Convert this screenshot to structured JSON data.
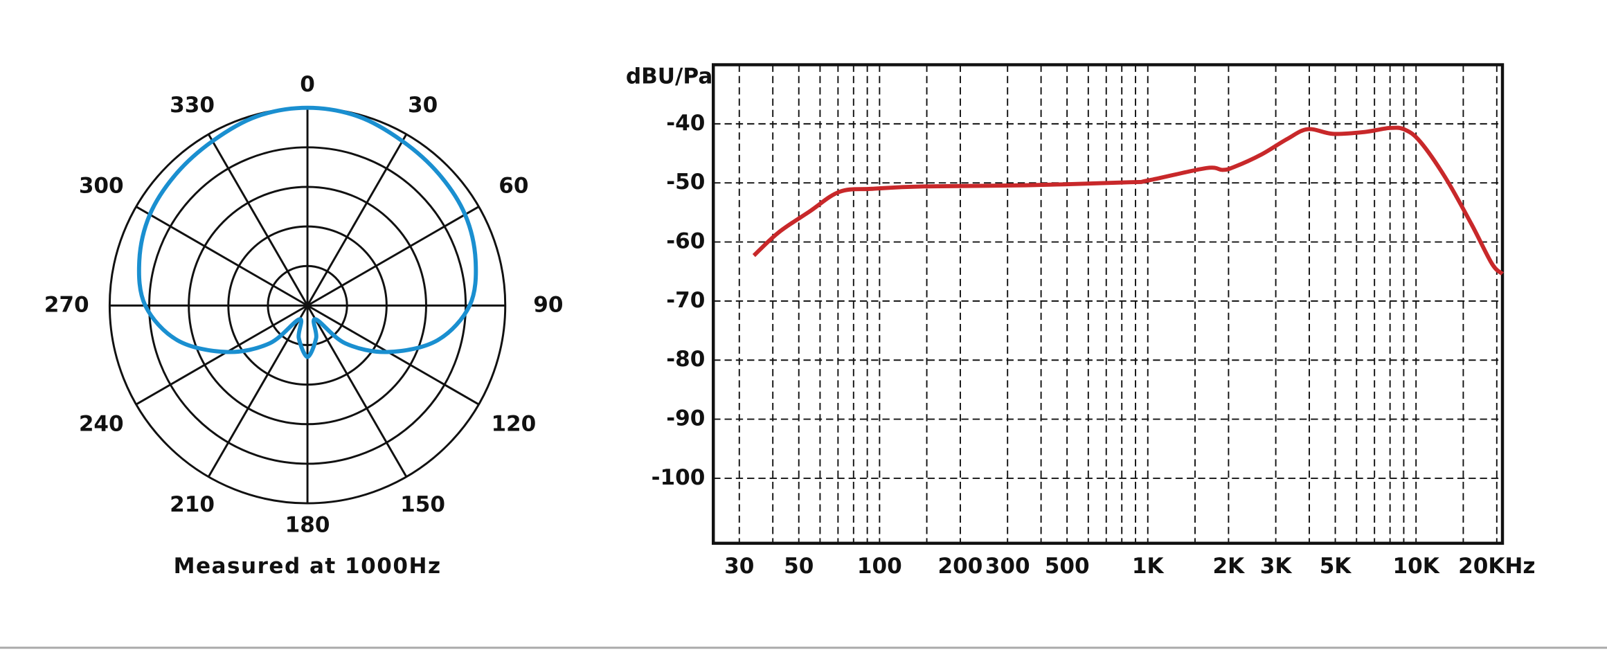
{
  "chart_data": [
    {
      "type": "polar",
      "caption": "Measured at 1000Hz",
      "color": "#1a8fd0",
      "theta": [
        0,
        15,
        30,
        45,
        60,
        75,
        90,
        105,
        120,
        135,
        150,
        165,
        180,
        195,
        210,
        225,
        240,
        255,
        270,
        285,
        300,
        315,
        330,
        345
      ],
      "values": [
        1.0,
        0.99,
        0.96,
        0.94,
        0.92,
        0.88,
        0.82,
        0.68,
        0.47,
        0.27,
        0.08,
        0.17,
        0.26,
        0.17,
        0.08,
        0.27,
        0.47,
        0.68,
        0.82,
        0.88,
        0.92,
        0.94,
        0.96,
        0.99
      ],
      "rlim": [
        0,
        1
      ],
      "rticks": [
        0.2,
        0.4,
        0.6,
        0.8,
        1.0
      ],
      "thetaticks": [
        0,
        30,
        60,
        90,
        120,
        150,
        180,
        210,
        240,
        270,
        300,
        330
      ]
    },
    {
      "type": "line",
      "ylabel": "dBU/Pa",
      "color": "#c8282a",
      "xlog": true,
      "grid": true,
      "x": [
        34,
        42,
        55,
        71,
        94,
        146,
        350,
        850,
        1000,
        1650,
        1900,
        2100,
        2650,
        3300,
        3950,
        4900,
        6400,
        8000,
        9100,
        10400,
        12900,
        16100,
        19200,
        21000
      ],
      "values": [
        -62.3,
        -58.4,
        -54.8,
        -51.5,
        -51,
        -50.6,
        -50.4,
        -49.9,
        -49.6,
        -47.5,
        -47.8,
        -47.3,
        -45.2,
        -42.6,
        -40.9,
        -41.7,
        -41.4,
        -40.7,
        -41,
        -43.1,
        -49.2,
        -57,
        -63.7,
        -65.4
      ],
      "xlim": [
        24,
        21000
      ],
      "ylim": [
        -111,
        -30
      ],
      "xticks": [
        30,
        50,
        100,
        200,
        300,
        500,
        {
          "value": 1000,
          "label": "1K"
        },
        {
          "value": 2000,
          "label": "2K"
        },
        {
          "value": 3000,
          "label": "3K"
        },
        {
          "value": 5000,
          "label": "5K"
        },
        {
          "value": 10000,
          "label": "10K"
        },
        {
          "value": 20000,
          "label": "20KHz"
        }
      ],
      "xgrid": [
        30,
        40,
        50,
        60,
        70,
        80,
        90,
        100,
        150,
        200,
        300,
        400,
        500,
        600,
        700,
        800,
        900,
        1000,
        1500,
        2000,
        3000,
        4000,
        5000,
        6000,
        7000,
        8000,
        9000,
        10000,
        15000,
        20000
      ],
      "yticks": [
        -40,
        -50,
        -60,
        -70,
        -80,
        -90,
        -100
      ]
    }
  ]
}
